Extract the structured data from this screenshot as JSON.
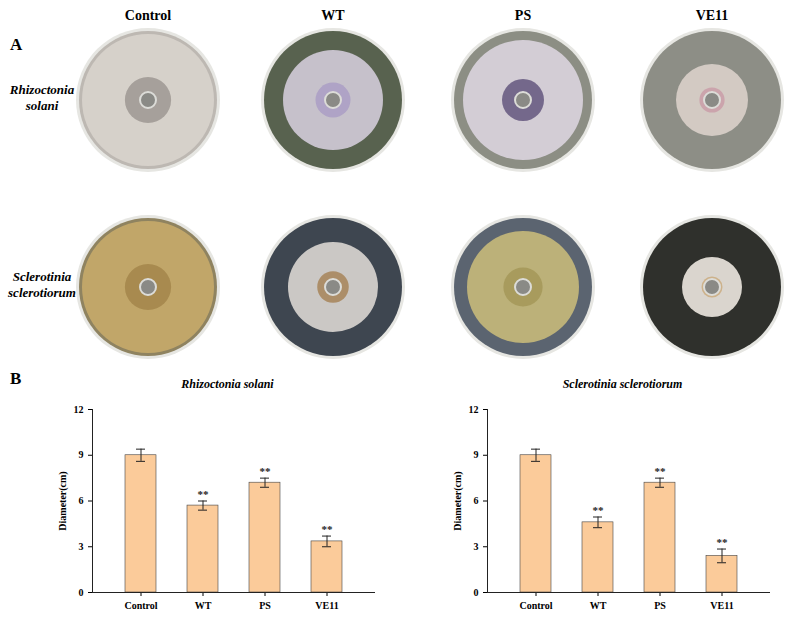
{
  "figure": {
    "panel_a_label": "A",
    "panel_b_label": "B",
    "columns": [
      "Control",
      "WT",
      "PS",
      "VE11"
    ],
    "rows": [
      "Rhizoctonia solani",
      "Sclerotinia sclerotiorum"
    ]
  },
  "chart_data": [
    {
      "type": "bar",
      "title": "Rhizoctonia solani",
      "categories": [
        "Control",
        "WT",
        "PS",
        "VE11"
      ],
      "values": [
        9.0,
        5.7,
        7.2,
        3.35
      ],
      "errors": [
        0.4,
        0.3,
        0.3,
        0.35
      ],
      "significance": [
        null,
        "**",
        "**",
        "**"
      ],
      "color": "#fbcb9a",
      "y_label": "Diameter(cm)",
      "ylim": [
        0,
        12
      ],
      "yticks": [
        0,
        3,
        6,
        9,
        12
      ]
    },
    {
      "type": "bar",
      "title": "Sclerotinia sclerotiorum",
      "categories": [
        "Control",
        "WT",
        "PS",
        "VE11"
      ],
      "values": [
        9.0,
        4.6,
        7.2,
        2.4
      ],
      "errors": [
        0.4,
        0.35,
        0.3,
        0.45
      ],
      "significance": [
        null,
        "**",
        "**",
        "**"
      ],
      "color": "#fbcb9a",
      "y_label": "Diameter(cm)",
      "ylim": [
        0,
        12
      ],
      "yticks": [
        0,
        3,
        6,
        9,
        12
      ]
    }
  ]
}
